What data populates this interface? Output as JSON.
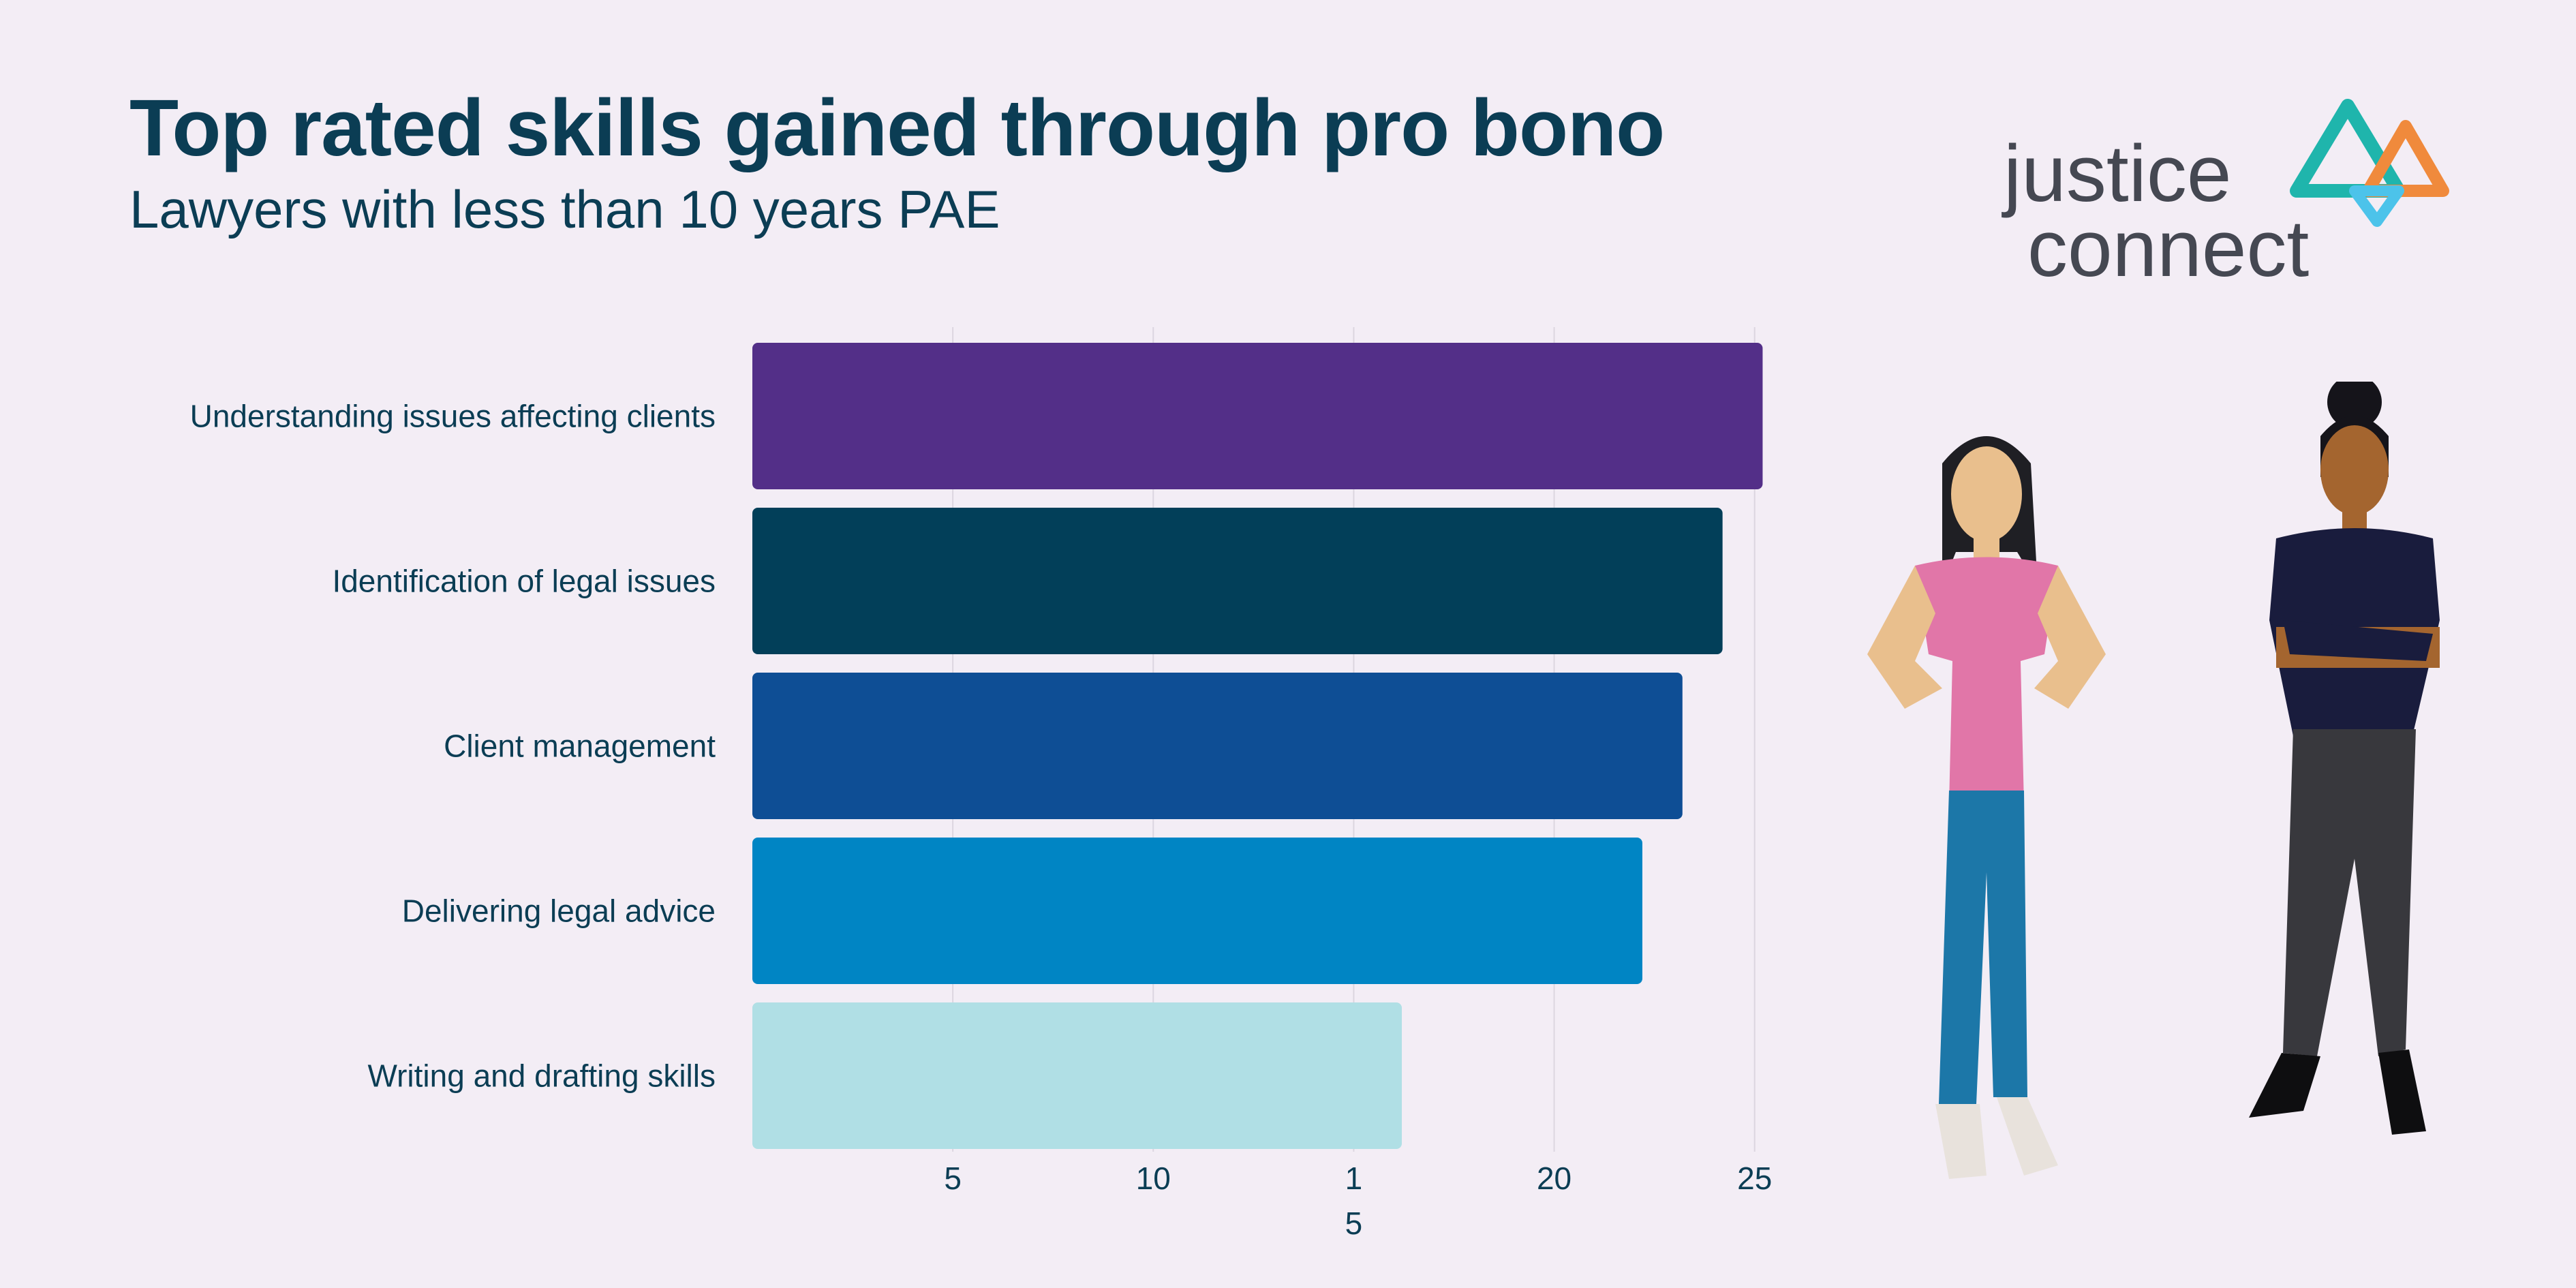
{
  "header": {
    "title": "Top rated skills gained through pro bono",
    "subtitle": "Lawyers with less than 10 years PAE"
  },
  "logo": {
    "line1": "justice",
    "line2": "connect",
    "colors": [
      "#1fb5ac",
      "#f08a3c",
      "#4cc3ea"
    ]
  },
  "chart_data": {
    "type": "bar",
    "orientation": "horizontal",
    "title": "Top rated skills gained through pro bono",
    "subtitle": "Lawyers with less than 10 years PAE",
    "xlabel": "",
    "ylabel": "",
    "categories": [
      "Understanding issues affecting clients",
      "Identification of legal issues",
      "Client management",
      "Delivering legal advice",
      "Writing and drafting skills"
    ],
    "values": [
      25.2,
      24.2,
      23.2,
      22.2,
      16.2
    ],
    "colors": [
      "#532f88",
      "#023f59",
      "#0e4e95",
      "#0085c4",
      "#b0dfe5"
    ],
    "xlim": [
      0,
      25.6
    ],
    "ticks": [
      {
        "value": 5,
        "label": "5"
      },
      {
        "value": 10,
        "label": "10"
      },
      {
        "value": 15,
        "label": "1\n5"
      },
      {
        "value": 20,
        "label": "20"
      },
      {
        "value": 25,
        "label": "25"
      }
    ],
    "grid": true,
    "legend": "none"
  }
}
